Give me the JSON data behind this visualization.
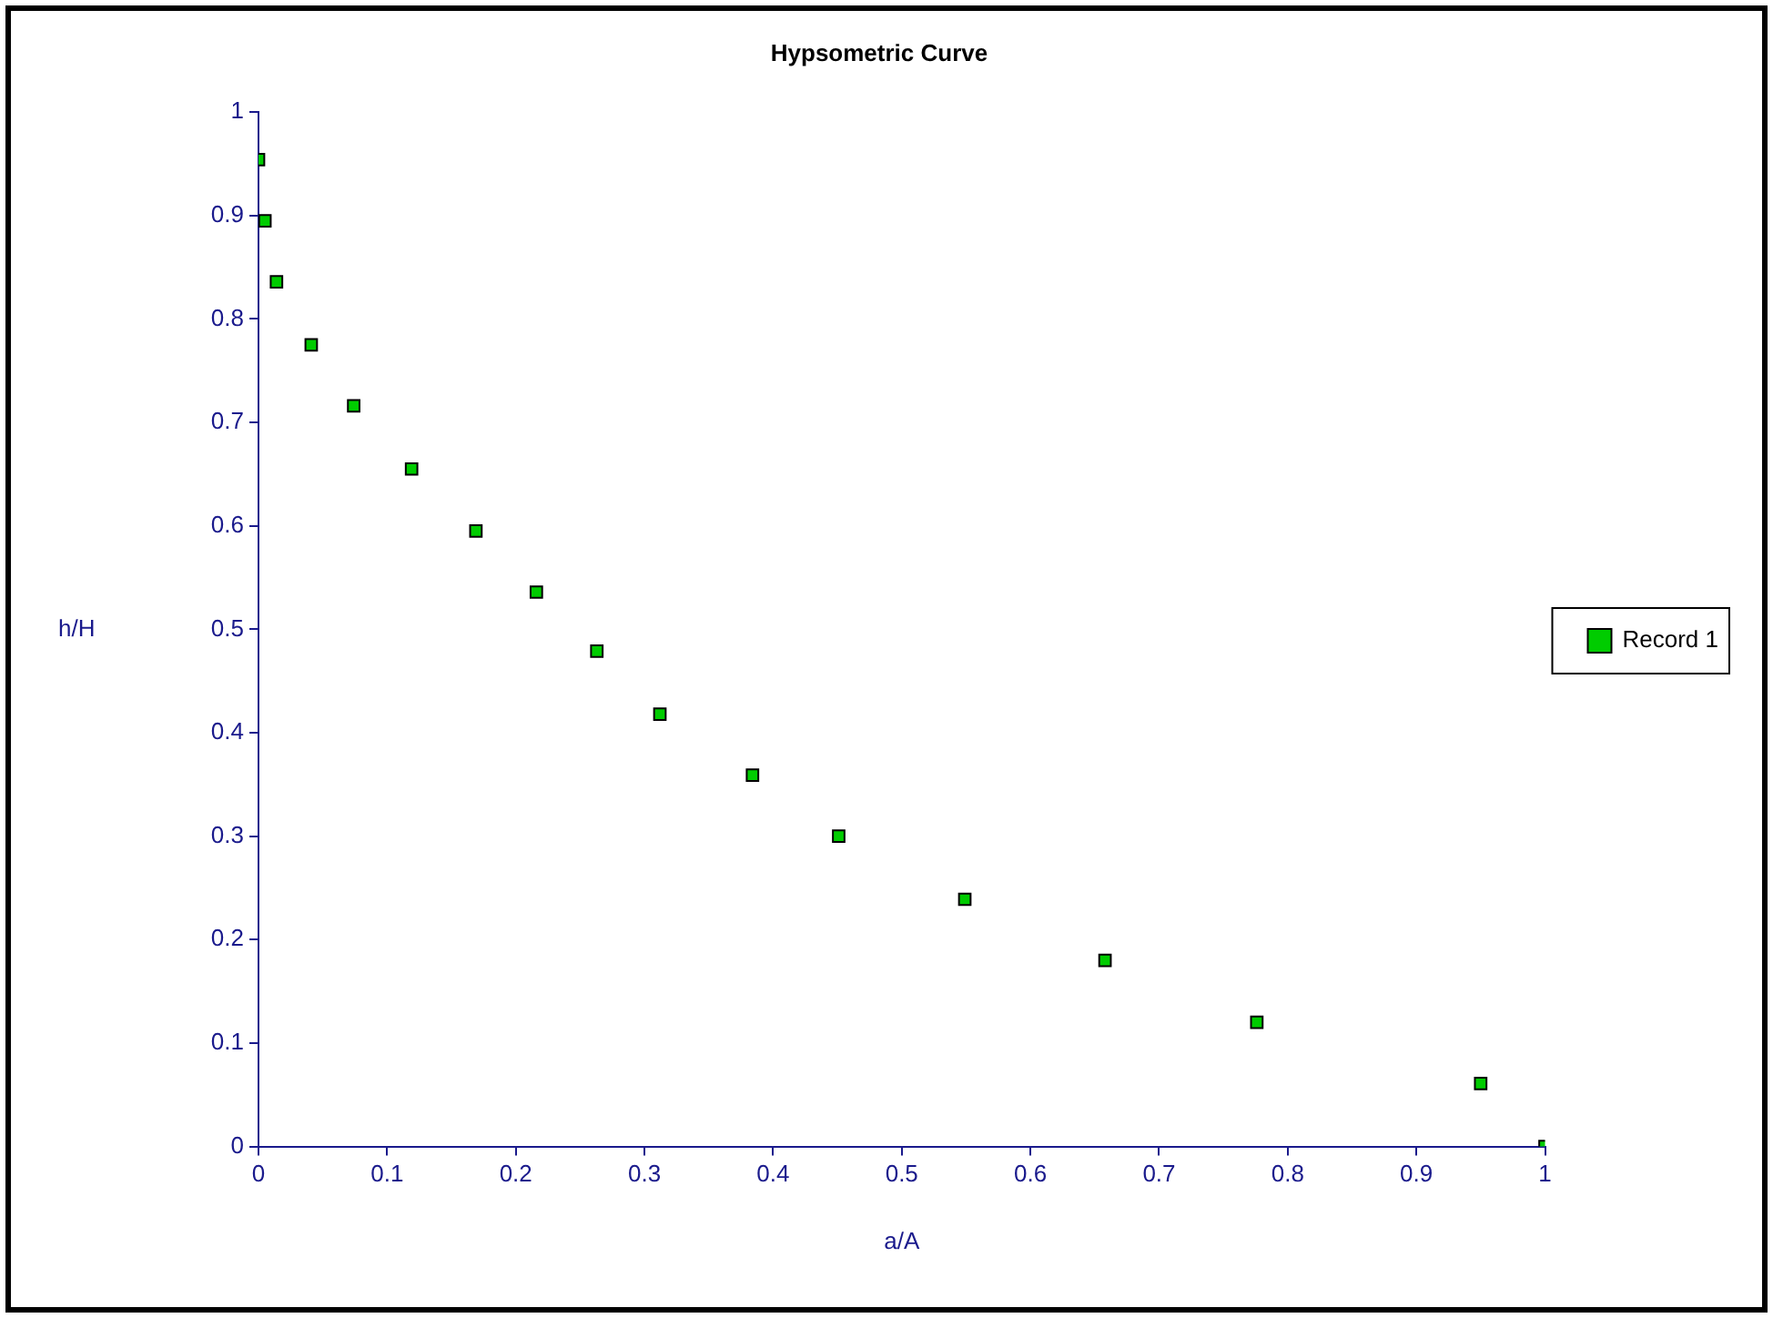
{
  "chart_data": {
    "type": "scatter",
    "title": "Hypsometric Curve",
    "xlabel": "a/A",
    "ylabel": "h/H",
    "x": [
      0,
      0.005,
      0.014,
      0.041,
      0.074,
      0.119,
      0.169,
      0.216,
      0.263,
      0.312,
      0.384,
      0.451,
      0.549,
      0.658,
      0.776,
      0.95,
      1
    ],
    "series": [
      {
        "name": "Record 1",
        "color": "#00cc00",
        "values": [
          0.954,
          0.895,
          0.836,
          0.775,
          0.716,
          0.655,
          0.595,
          0.536,
          0.479,
          0.418,
          0.359,
          0.3,
          0.239,
          0.18,
          0.12,
          0.061,
          0
        ]
      }
    ],
    "xlim": [
      0,
      1
    ],
    "xticks": [
      0,
      0.1,
      0.2,
      0.3,
      0.4,
      0.5,
      0.6,
      0.7,
      0.8,
      0.9,
      1
    ],
    "ylim": [
      0,
      1
    ],
    "yticks": [
      0,
      0.1,
      0.2,
      0.3,
      0.4,
      0.5,
      0.6,
      0.7,
      0.8,
      0.9,
      1
    ],
    "grid": false,
    "legend": "right",
    "marker": "square"
  }
}
